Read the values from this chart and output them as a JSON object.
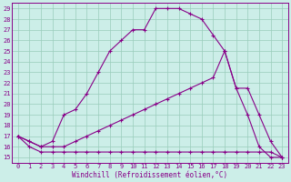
{
  "xlabel": "Windchill (Refroidissement éolien,°C)",
  "background_color": "#cceee8",
  "line_color": "#880088",
  "xlim": [
    -0.5,
    23.5
  ],
  "ylim": [
    14.5,
    29.5
  ],
  "xticks": [
    0,
    1,
    2,
    3,
    4,
    5,
    6,
    7,
    8,
    9,
    10,
    11,
    12,
    13,
    14,
    15,
    16,
    17,
    18,
    19,
    20,
    21,
    22,
    23
  ],
  "yticks": [
    15,
    16,
    17,
    18,
    19,
    20,
    21,
    22,
    23,
    24,
    25,
    26,
    27,
    28,
    29
  ],
  "series1_x": [
    0,
    1,
    2,
    3,
    4,
    5,
    6,
    7,
    8,
    9,
    10,
    11,
    12,
    13,
    14,
    15,
    16,
    17,
    18,
    19,
    20,
    21,
    22,
    23
  ],
  "series1_y": [
    17.0,
    16.5,
    16.0,
    16.5,
    19.0,
    19.5,
    21.0,
    23.0,
    25.0,
    26.0,
    27.0,
    27.0,
    29.0,
    29.0,
    29.0,
    28.5,
    28.0,
    26.5,
    25.0,
    21.5,
    19.0,
    16.0,
    15.0,
    15.0
  ],
  "series2_x": [
    0,
    1,
    2,
    3,
    4,
    5,
    6,
    7,
    8,
    9,
    10,
    11,
    12,
    13,
    14,
    15,
    16,
    17,
    18,
    19,
    20,
    21,
    22,
    23
  ],
  "series2_y": [
    17.0,
    16.5,
    16.0,
    16.0,
    16.0,
    16.5,
    17.0,
    17.5,
    18.0,
    18.5,
    19.0,
    19.5,
    20.0,
    20.5,
    21.0,
    21.5,
    22.0,
    22.5,
    25.0,
    21.5,
    21.5,
    19.0,
    16.5,
    15.0
  ],
  "series3_x": [
    0,
    1,
    2,
    3,
    4,
    5,
    6,
    7,
    8,
    9,
    10,
    11,
    12,
    13,
    14,
    15,
    16,
    17,
    18,
    19,
    20,
    21,
    22,
    23
  ],
  "series3_y": [
    17.0,
    16.0,
    15.5,
    15.5,
    15.5,
    15.5,
    15.5,
    15.5,
    15.5,
    15.5,
    15.5,
    15.5,
    15.5,
    15.5,
    15.5,
    15.5,
    15.5,
    15.5,
    15.5,
    15.5,
    15.5,
    15.5,
    15.5,
    15.0
  ],
  "grid_color": "#99ccbb",
  "font_color": "#880088",
  "tick_fontsize": 5.0,
  "xlabel_fontsize": 5.5
}
